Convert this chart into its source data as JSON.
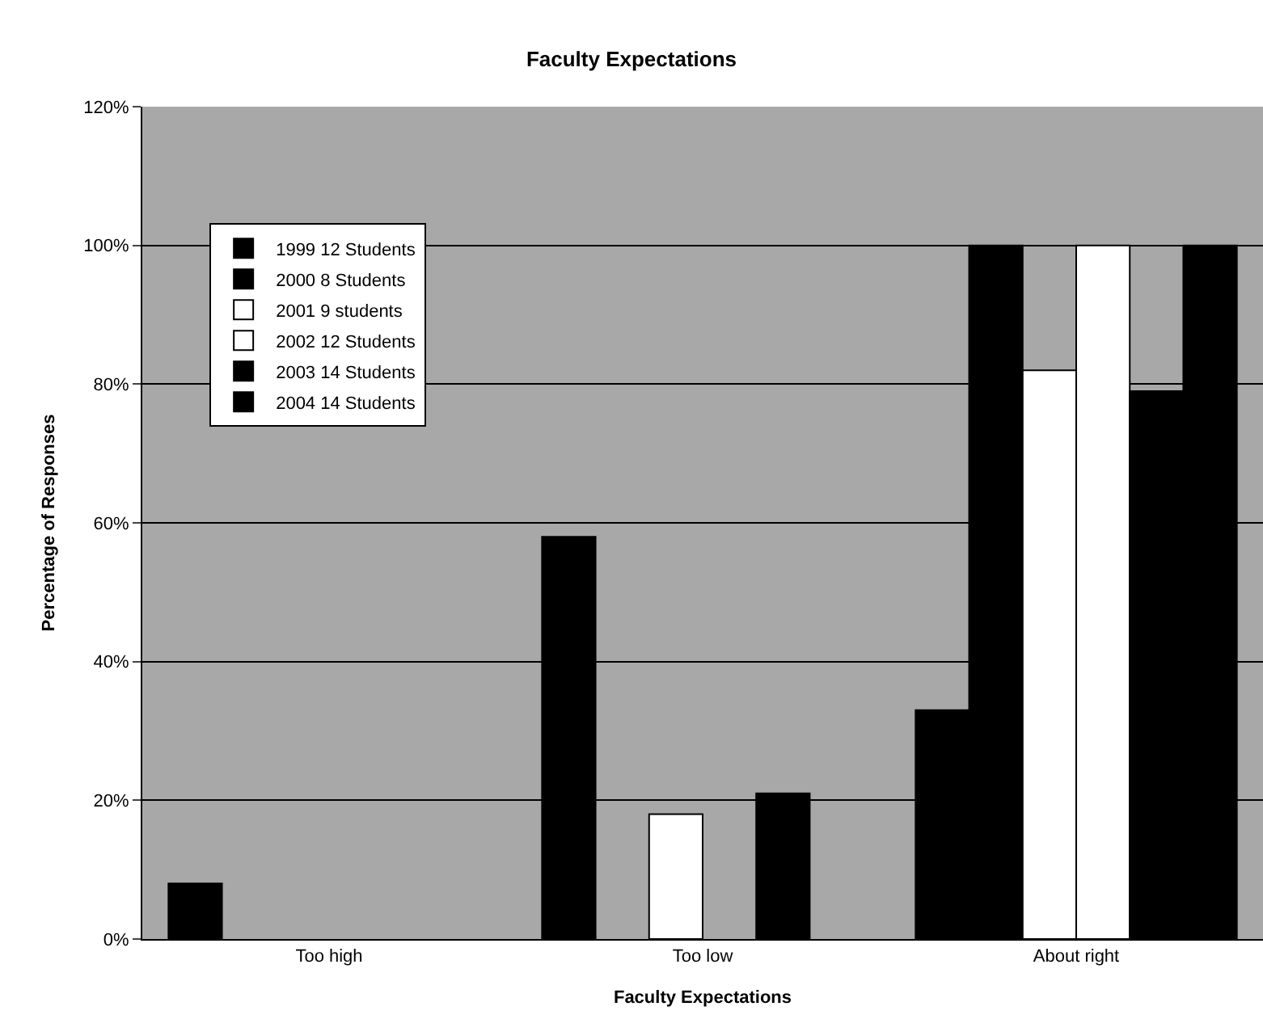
{
  "chart_data": {
    "type": "bar",
    "title": "Faculty Expectations",
    "xlabel": "Faculty Expectations",
    "ylabel": "Percentage of Responses",
    "categories": [
      "Too high",
      "Too low",
      "About right"
    ],
    "series": [
      {
        "name": "1999 12 Students",
        "color": "#000000",
        "values": [
          8,
          58,
          33
        ]
      },
      {
        "name": "2000 8 Students",
        "color": "#000000",
        "values": [
          null,
          null,
          100
        ]
      },
      {
        "name": "2001 9 students",
        "color": "#ffffff",
        "values": [
          null,
          18,
          82
        ]
      },
      {
        "name": "2002 12 Students",
        "color": "#ffffff",
        "values": [
          null,
          null,
          100
        ]
      },
      {
        "name": "2003 14 Students",
        "color": "#000000",
        "values": [
          null,
          21,
          79
        ]
      },
      {
        "name": "2004 14 Students",
        "color": "#000000",
        "values": [
          null,
          null,
          100
        ]
      }
    ],
    "ylim": [
      0,
      120
    ],
    "yticks": [
      {
        "value": 0,
        "label": "0%"
      },
      {
        "value": 20,
        "label": "20%"
      },
      {
        "value": 40,
        "label": "40%"
      },
      {
        "value": 60,
        "label": "60%"
      },
      {
        "value": 80,
        "label": "80%"
      },
      {
        "value": 100,
        "label": "100%"
      },
      {
        "value": 120,
        "label": "120%"
      }
    ],
    "grid": "y",
    "legend": "top left"
  }
}
